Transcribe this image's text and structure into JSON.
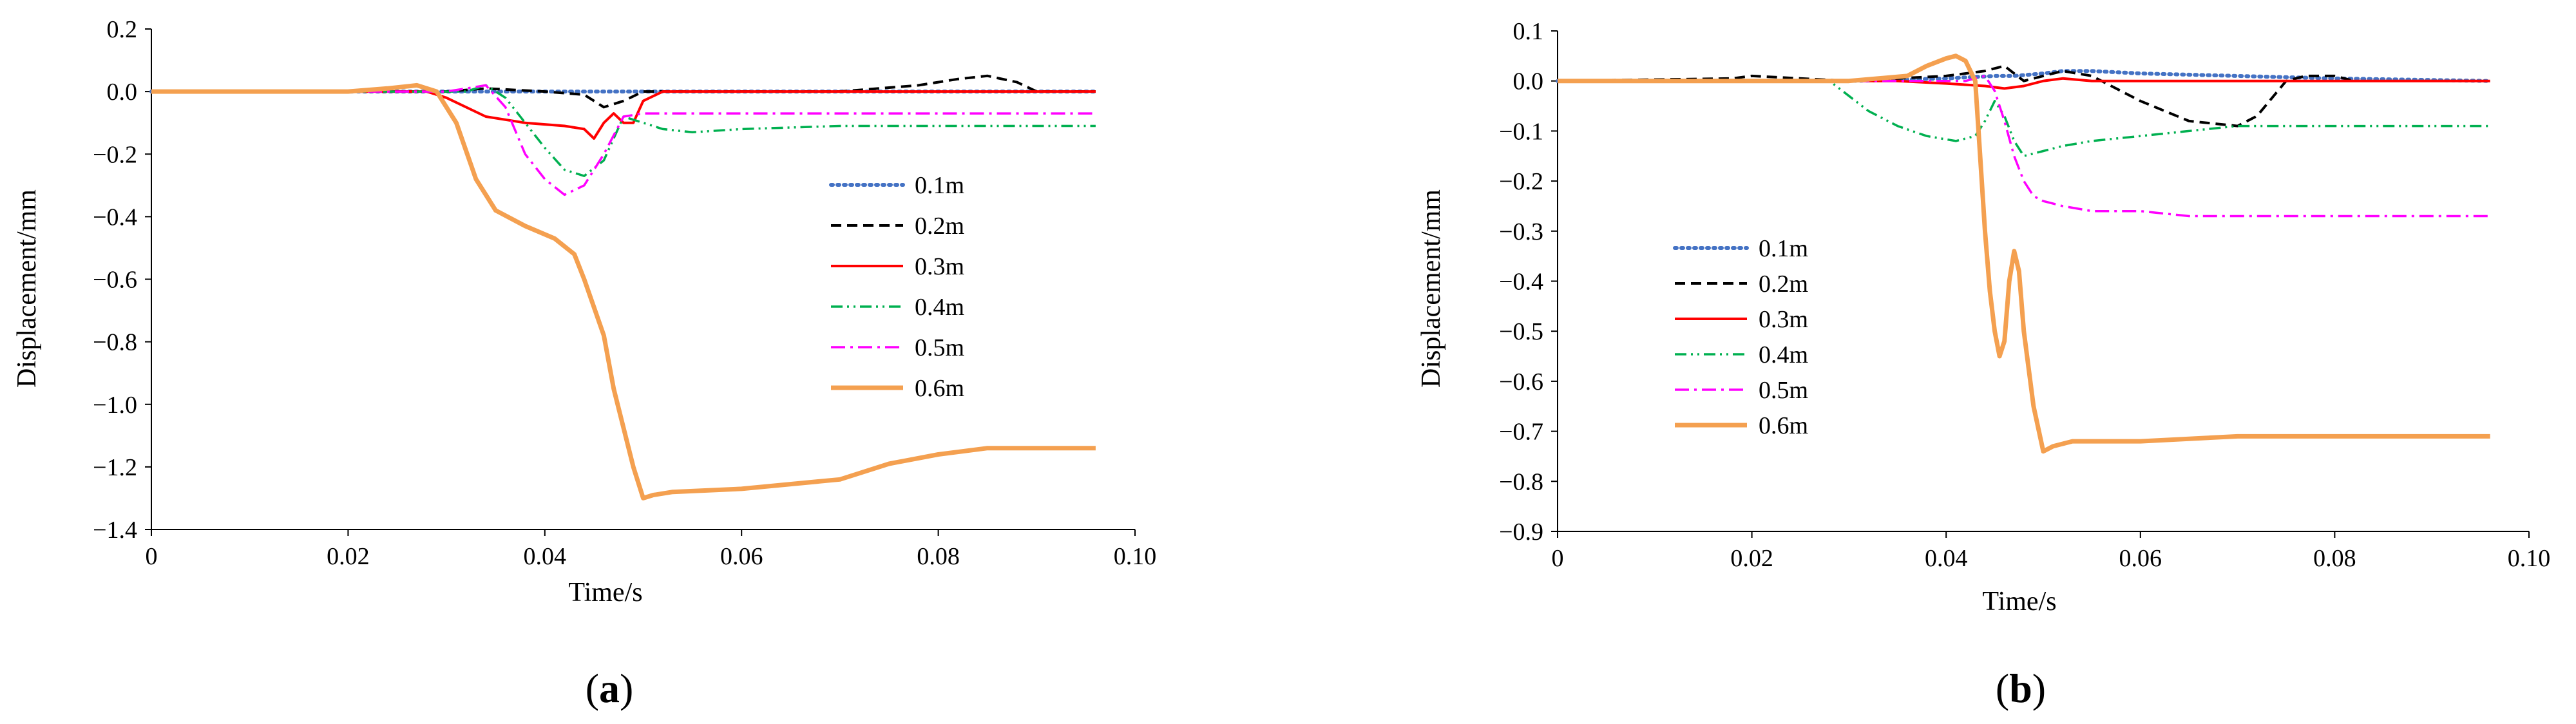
{
  "figure": {
    "panels": [
      {
        "caption_letter": "a",
        "xlabel": "Time/s",
        "ylabel": "Displacement/mm",
        "xticks": [
          "0",
          "0.02",
          "0.04",
          "0.06",
          "0.08",
          "0.10"
        ],
        "yticks": [
          "0.2",
          "0.0",
          "−0.2",
          "−0.4",
          "−0.6",
          "−0.8",
          "−1.0",
          "−1.2",
          "−1.4"
        ],
        "legend_labels": [
          "0.1m",
          "0.2m",
          "0.3m",
          "0.4m",
          "0.5m",
          "0.6m"
        ]
      },
      {
        "caption_letter": "b",
        "xlabel": "Time/s",
        "ylabel": "Displacement/mm",
        "xticks": [
          "0",
          "0.02",
          "0.04",
          "0.06",
          "0.08",
          "0.10"
        ],
        "yticks": [
          "0.1",
          "0.0",
          "−0.1",
          "−0.2",
          "−0.3",
          "−0.4",
          "−0.5",
          "−0.6",
          "−0.7",
          "−0.8",
          "−0.9"
        ],
        "legend_labels": [
          "0.1m",
          "0.2m",
          "0.3m",
          "0.4m",
          "0.5m",
          "0.6m"
        ]
      }
    ]
  },
  "series_styles": [
    {
      "name": "0.1m",
      "color": "#4472c4",
      "dash": "dotted"
    },
    {
      "name": "0.2m",
      "color": "#000000",
      "dash": "dashed"
    },
    {
      "name": "0.3m",
      "color": "#ff0000",
      "dash": "solid"
    },
    {
      "name": "0.4m",
      "color": "#00b050",
      "dash": "dashdotdot"
    },
    {
      "name": "0.5m",
      "color": "#ff00ff",
      "dash": "dashdot"
    },
    {
      "name": "0.6m",
      "color": "#f4a050",
      "dash": "solid-thick"
    }
  ],
  "chart_data": [
    {
      "type": "line",
      "xlabel": "Time/s",
      "ylabel": "Displacement/mm",
      "xlim": [
        0,
        0.1
      ],
      "ylim": [
        -1.4,
        0.2
      ],
      "grid": false,
      "legend_position": "right",
      "series": [
        {
          "name": "0.1m",
          "x": [
            0,
            0.02,
            0.03,
            0.04,
            0.05,
            0.06,
            0.08,
            0.096
          ],
          "y": [
            0,
            0,
            0,
            0,
            0,
            0,
            0,
            0
          ]
        },
        {
          "name": "0.2m",
          "x": [
            0,
            0.03,
            0.034,
            0.04,
            0.044,
            0.046,
            0.048,
            0.05,
            0.055,
            0.06,
            0.07,
            0.078,
            0.082,
            0.085,
            0.088,
            0.09,
            0.096
          ],
          "y": [
            0,
            0,
            0.01,
            0,
            -0.01,
            -0.05,
            -0.03,
            0,
            0,
            0,
            0,
            0.02,
            0.04,
            0.05,
            0.03,
            0,
            0
          ]
        },
        {
          "name": "0.3m",
          "x": [
            0,
            0.028,
            0.03,
            0.034,
            0.038,
            0.042,
            0.044,
            0.045,
            0.046,
            0.047,
            0.048,
            0.049,
            0.05,
            0.052,
            0.06,
            0.096
          ],
          "y": [
            0,
            0,
            -0.02,
            -0.08,
            -0.1,
            -0.11,
            -0.12,
            -0.15,
            -0.1,
            -0.07,
            -0.1,
            -0.1,
            -0.03,
            0,
            0,
            0
          ]
        },
        {
          "name": "0.4m",
          "x": [
            0,
            0.028,
            0.032,
            0.034,
            0.036,
            0.038,
            0.04,
            0.042,
            0.044,
            0.046,
            0.047,
            0.048,
            0.05,
            0.052,
            0.055,
            0.06,
            0.07,
            0.08,
            0.096
          ],
          "y": [
            0,
            0,
            0,
            0.02,
            -0.02,
            -0.1,
            -0.18,
            -0.25,
            -0.27,
            -0.22,
            -0.15,
            -0.08,
            -0.1,
            -0.12,
            -0.13,
            -0.12,
            -0.11,
            -0.11,
            -0.11
          ]
        },
        {
          "name": "0.5m",
          "x": [
            0,
            0.03,
            0.032,
            0.034,
            0.036,
            0.038,
            0.04,
            0.042,
            0.044,
            0.046,
            0.048,
            0.05,
            0.06,
            0.08,
            0.096
          ],
          "y": [
            0,
            0,
            0.01,
            0.02,
            -0.05,
            -0.2,
            -0.28,
            -0.33,
            -0.3,
            -0.2,
            -0.08,
            -0.07,
            -0.07,
            -0.07,
            -0.07
          ]
        },
        {
          "name": "0.6m",
          "x": [
            0,
            0.02,
            0.024,
            0.027,
            0.029,
            0.031,
            0.033,
            0.035,
            0.038,
            0.041,
            0.043,
            0.044,
            0.046,
            0.047,
            0.049,
            0.05,
            0.051,
            0.053,
            0.06,
            0.07,
            0.075,
            0.08,
            0.085,
            0.09,
            0.096
          ],
          "y": [
            0,
            0,
            0.01,
            0.02,
            0,
            -0.1,
            -0.28,
            -0.38,
            -0.43,
            -0.47,
            -0.52,
            -0.6,
            -0.78,
            -0.95,
            -1.2,
            -1.3,
            -1.29,
            -1.28,
            -1.27,
            -1.24,
            -1.19,
            -1.16,
            -1.14,
            -1.14,
            -1.14
          ]
        }
      ]
    },
    {
      "type": "line",
      "xlabel": "Time/s",
      "ylabel": "Displacement/mm",
      "xlim": [
        0,
        0.1
      ],
      "ylim": [
        -0.9,
        0.1
      ],
      "grid": false,
      "legend_position": "left",
      "series": [
        {
          "name": "0.1m",
          "x": [
            0,
            0.02,
            0.03,
            0.04,
            0.045,
            0.047,
            0.05,
            0.052,
            0.055,
            0.06,
            0.07,
            0.08,
            0.096
          ],
          "y": [
            0,
            0,
            0,
            0.005,
            0.01,
            0.01,
            0.015,
            0.02,
            0.02,
            0.015,
            0.01,
            0.005,
            0
          ]
        },
        {
          "name": "0.2m",
          "x": [
            0,
            0.018,
            0.02,
            0.03,
            0.04,
            0.044,
            0.046,
            0.048,
            0.05,
            0.052,
            0.055,
            0.06,
            0.065,
            0.07,
            0.072,
            0.075,
            0.077,
            0.08,
            0.082
          ],
          "y": [
            0,
            0.005,
            0.01,
            0,
            0.01,
            0.02,
            0.03,
            0,
            0.01,
            0.02,
            0.01,
            -0.04,
            -0.08,
            -0.09,
            -0.07,
            0,
            0.01,
            0.01,
            0
          ]
        },
        {
          "name": "0.3m",
          "x": [
            0,
            0.03,
            0.035,
            0.04,
            0.044,
            0.046,
            0.048,
            0.05,
            0.052,
            0.055,
            0.06,
            0.096
          ],
          "y": [
            0,
            0,
            0,
            -0.005,
            -0.01,
            -0.015,
            -0.01,
            0,
            0.005,
            0,
            0,
            0
          ]
        },
        {
          "name": "0.4m",
          "x": [
            0,
            0.028,
            0.032,
            0.035,
            0.038,
            0.041,
            0.043,
            0.044,
            0.045,
            0.046,
            0.047,
            0.048,
            0.05,
            0.052,
            0.055,
            0.06,
            0.065,
            0.07,
            0.08,
            0.096
          ],
          "y": [
            0,
            0,
            -0.06,
            -0.09,
            -0.11,
            -0.12,
            -0.11,
            -0.08,
            -0.04,
            -0.07,
            -0.12,
            -0.15,
            -0.14,
            -0.13,
            -0.12,
            -0.11,
            -0.1,
            -0.09,
            -0.09,
            -0.09
          ]
        },
        {
          "name": "0.5m",
          "x": [
            0,
            0.036,
            0.04,
            0.042,
            0.044,
            0.045,
            0.046,
            0.047,
            0.048,
            0.049,
            0.05,
            0.052,
            0.055,
            0.06,
            0.065,
            0.07,
            0.08,
            0.096
          ],
          "y": [
            0,
            0,
            0,
            0,
            0.01,
            -0.02,
            -0.08,
            -0.15,
            -0.2,
            -0.23,
            -0.24,
            -0.25,
            -0.26,
            -0.26,
            -0.27,
            -0.27,
            -0.27,
            -0.27
          ]
        },
        {
          "name": "0.6m",
          "x": [
            0,
            0.03,
            0.036,
            0.038,
            0.04,
            0.041,
            0.042,
            0.043,
            0.0435,
            0.044,
            0.0445,
            0.045,
            0.0455,
            0.046,
            0.0465,
            0.047,
            0.0475,
            0.048,
            0.049,
            0.05,
            0.051,
            0.053,
            0.06,
            0.07,
            0.08,
            0.096
          ],
          "y": [
            0,
            0,
            0.01,
            0.03,
            0.045,
            0.05,
            0.04,
            0,
            -0.15,
            -0.3,
            -0.42,
            -0.5,
            -0.55,
            -0.52,
            -0.4,
            -0.34,
            -0.38,
            -0.5,
            -0.65,
            -0.74,
            -0.73,
            -0.72,
            -0.72,
            -0.71,
            -0.71,
            -0.71
          ]
        }
      ]
    }
  ]
}
